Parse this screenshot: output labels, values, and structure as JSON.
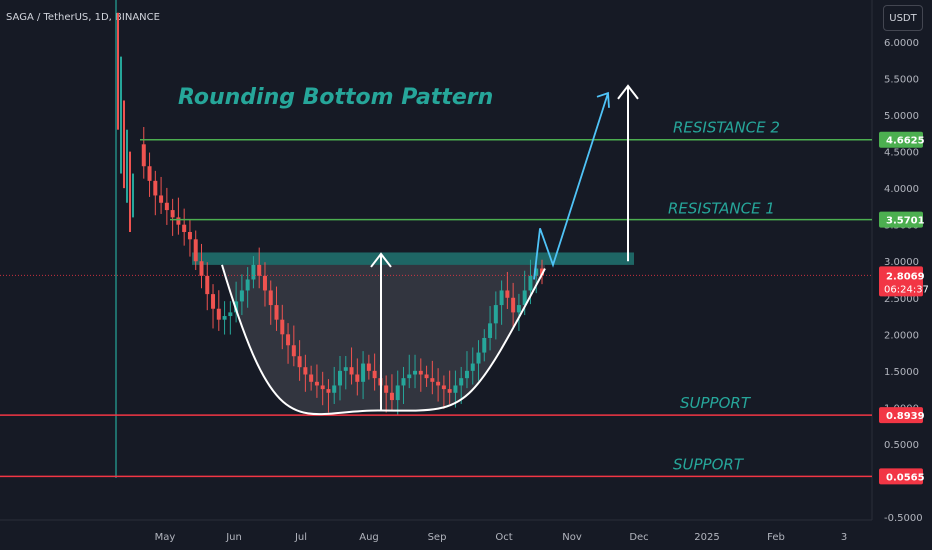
{
  "header": {
    "symbol": "SAGA / TetherUS, 1D, BINANCE",
    "unit_button": "USDT"
  },
  "chart_data": {
    "type": "line",
    "title": "Rounding Bottom Pattern",
    "x_labels": [
      "May",
      "Jun",
      "Jul",
      "Aug",
      "Sep",
      "Oct",
      "Nov",
      "Dec",
      "2025",
      "Feb",
      "3"
    ],
    "y_ticks": [
      "6.0000",
      "5.5000",
      "5.0000",
      "4.5000",
      "4.0000",
      "3.5000",
      "3.0000",
      "2.5000",
      "2.0000",
      "1.5000",
      "1.0000",
      "0.5000",
      "-0.5000"
    ],
    "y_tick_values": [
      6.0,
      5.5,
      5.0,
      4.5,
      4.0,
      3.5,
      3.0,
      2.5,
      2.0,
      1.5,
      1.0,
      0.5,
      -0.5
    ],
    "ylim": [
      -0.55,
      6.4
    ],
    "levels": [
      {
        "name": "RESISTANCE 2",
        "value": 4.6625,
        "label": "4.6625",
        "color": "#4caf50"
      },
      {
        "name": "RESISTANCE 1",
        "value": 3.5701,
        "label": "3.5701",
        "color": "#4caf50"
      },
      {
        "name": "SUPPORT",
        "value": 0.8939,
        "label": "0.8939",
        "color": "#f23645"
      },
      {
        "name": "SUPPORT",
        "value": 0.0565,
        "label": "0.0565",
        "color": "#f23645"
      }
    ],
    "current_price": {
      "value": 2.8069,
      "label": "2.8069",
      "countdown": "06:24:37",
      "color": "#f23645"
    },
    "neckline_zone": {
      "low": 2.95,
      "high": 3.12,
      "color": "#26a69a"
    },
    "price_series": [
      4.6,
      4.3,
      4.1,
      3.9,
      3.8,
      3.7,
      3.6,
      3.5,
      3.4,
      3.3,
      3.0,
      2.8,
      2.55,
      2.35,
      2.2,
      2.25,
      2.3,
      2.45,
      2.6,
      2.75,
      2.95,
      2.8,
      2.6,
      2.4,
      2.2,
      2.0,
      1.85,
      1.7,
      1.55,
      1.45,
      1.35,
      1.3,
      1.25,
      1.2,
      1.3,
      1.5,
      1.55,
      1.45,
      1.35,
      1.6,
      1.5,
      1.4,
      1.3,
      1.2,
      1.1,
      1.3,
      1.4,
      1.45,
      1.5,
      1.45,
      1.4,
      1.35,
      1.3,
      1.25,
      1.2,
      1.3,
      1.4,
      1.5,
      1.6,
      1.75,
      1.95,
      2.15,
      2.4,
      2.6,
      2.5,
      2.3,
      2.4,
      2.6,
      2.8,
      2.9,
      2.8069
    ],
    "colors": {
      "up": "#26a69a",
      "down": "#ef5350",
      "projection": "#4fc3f7",
      "curve": "#ffffff"
    }
  }
}
